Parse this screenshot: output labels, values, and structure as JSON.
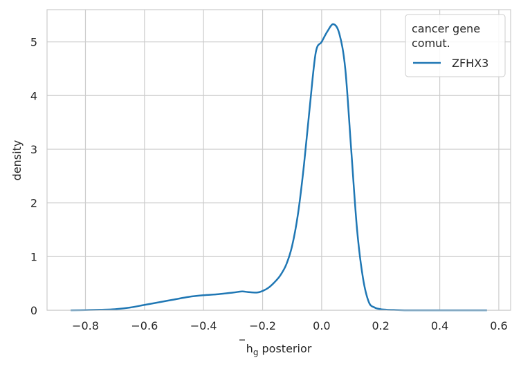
{
  "chart_data": {
    "type": "line",
    "xlabel_main": "h",
    "xlabel_sub": "g",
    "xlabel_rest": " posterior",
    "ylabel": "density",
    "xlim": [
      -0.93,
      0.64
    ],
    "ylim": [
      0,
      5.6
    ],
    "x_ticks": [
      -0.8,
      -0.6,
      -0.4,
      -0.2,
      0.0,
      0.2,
      0.4,
      0.6
    ],
    "x_tick_labels": [
      "−0.8",
      "−0.6",
      "−0.4",
      "−0.2",
      "0.0",
      "0.2",
      "0.4",
      "0.6"
    ],
    "y_ticks": [
      0,
      1,
      2,
      3,
      4,
      5
    ],
    "y_tick_labels": [
      "0",
      "1",
      "2",
      "3",
      "4",
      "5"
    ],
    "grid": true,
    "legend": {
      "title_line1": "cancer gene",
      "title_line2": "comut.",
      "placement": "top-right"
    },
    "series": [
      {
        "name": "ZFHX3",
        "color": "#1f77b4",
        "x": [
          -0.85,
          -0.8,
          -0.75,
          -0.7,
          -0.65,
          -0.6,
          -0.55,
          -0.5,
          -0.45,
          -0.4,
          -0.35,
          -0.3,
          -0.27,
          -0.25,
          -0.22,
          -0.2,
          -0.18,
          -0.16,
          -0.14,
          -0.12,
          -0.1,
          -0.08,
          -0.06,
          -0.04,
          -0.02,
          0.0,
          0.02,
          0.04,
          0.06,
          0.08,
          0.1,
          0.12,
          0.14,
          0.16,
          0.18,
          0.2,
          0.22,
          0.25,
          0.3,
          0.4,
          0.5,
          0.56
        ],
        "y": [
          0.0,
          0.003,
          0.01,
          0.02,
          0.05,
          0.1,
          0.15,
          0.2,
          0.25,
          0.28,
          0.3,
          0.33,
          0.35,
          0.34,
          0.33,
          0.36,
          0.42,
          0.52,
          0.65,
          0.85,
          1.2,
          1.8,
          2.7,
          3.8,
          4.8,
          5.0,
          5.2,
          5.33,
          5.15,
          4.5,
          3.0,
          1.5,
          0.6,
          0.15,
          0.05,
          0.02,
          0.01,
          0.005,
          0.0,
          0.0,
          0.0,
          0.0
        ]
      }
    ]
  }
}
